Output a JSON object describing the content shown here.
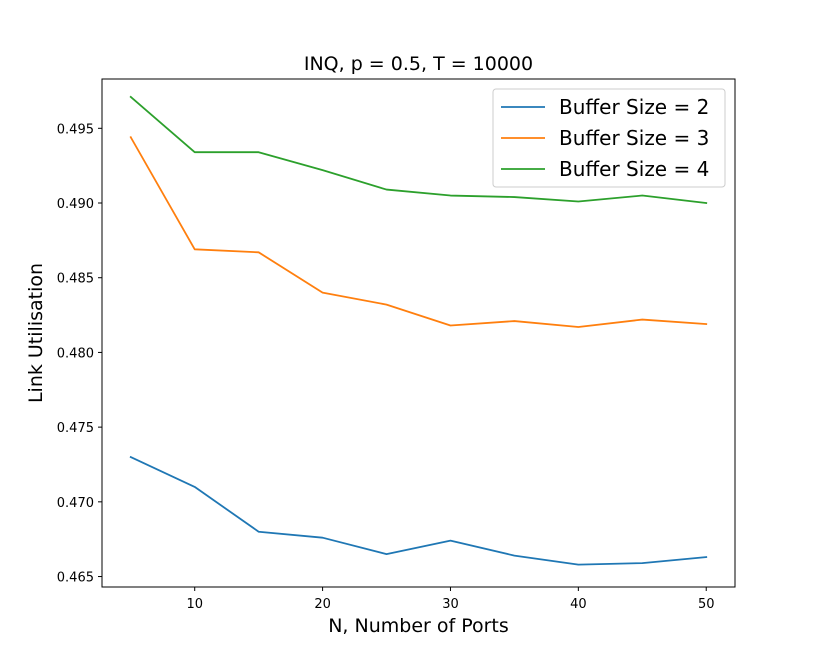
{
  "chart_data": {
    "type": "line",
    "title": "INQ, p = 0.5, T = 10000",
    "xlabel": "N, Number of Ports",
    "ylabel": "Link Utilisation",
    "x": [
      5,
      10,
      15,
      20,
      25,
      30,
      35,
      40,
      45,
      50
    ],
    "xlim": [
      2.75,
      52.25
    ],
    "ylim": [
      0.4643,
      0.4983
    ],
    "xticks": [
      10,
      20,
      30,
      40,
      50
    ],
    "xtick_labels": [
      "10",
      "20",
      "30",
      "40",
      "50"
    ],
    "yticks": [
      0.465,
      0.47,
      0.475,
      0.48,
      0.485,
      0.49,
      0.495
    ],
    "ytick_labels": [
      "0.465",
      "0.470",
      "0.475",
      "0.480",
      "0.485",
      "0.490",
      "0.495"
    ],
    "grid": false,
    "legend_position": "top-right",
    "series": [
      {
        "name": "Buffer Size = 2",
        "color": "#1f77b4",
        "values": [
          0.473,
          0.471,
          0.468,
          0.4676,
          0.4665,
          0.4674,
          0.4664,
          0.4658,
          0.4659,
          0.4663
        ]
      },
      {
        "name": "Buffer Size = 3",
        "color": "#ff7f0e",
        "values": [
          0.4944,
          0.4869,
          0.4867,
          0.484,
          0.4832,
          0.4818,
          0.4821,
          0.4817,
          0.4822,
          0.4819
        ]
      },
      {
        "name": "Buffer Size = 4",
        "color": "#2ca02c",
        "values": [
          0.4971,
          0.4934,
          0.4934,
          0.4922,
          0.4909,
          0.4905,
          0.4904,
          0.4901,
          0.4905,
          0.49
        ]
      }
    ]
  }
}
